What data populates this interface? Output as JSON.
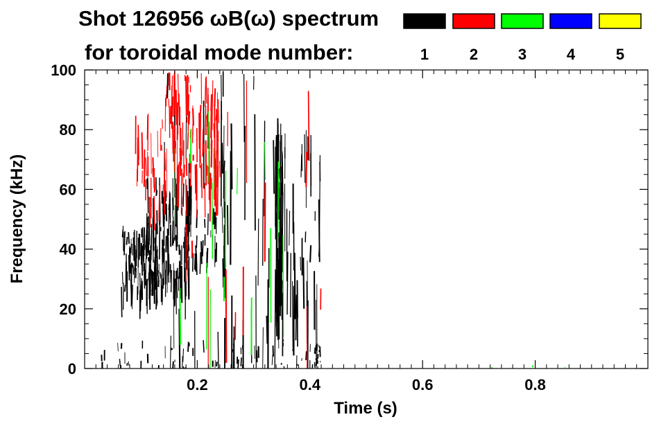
{
  "chart_data": {
    "type": "heatmap",
    "title": "Shot 126956 ωB(ω) spectrum",
    "subtitle": "for toroidal mode number:",
    "xlabel": "Time (s)",
    "ylabel": "Frequency (kHz)",
    "xlim": [
      0.0,
      1.0
    ],
    "ylim": [
      0,
      100
    ],
    "x_ticks": [
      0.2,
      0.4,
      0.6,
      0.8
    ],
    "x_tick_labels": [
      "0.2",
      "0.4",
      "0.6",
      "0.8"
    ],
    "y_ticks": [
      0,
      20,
      40,
      60,
      80,
      100
    ],
    "y_tick_labels": [
      "0",
      "20",
      "40",
      "60",
      "80",
      "100"
    ],
    "grid": false,
    "legend": {
      "placement": "top-right",
      "entries": [
        {
          "mode": "1",
          "color": "#000000"
        },
        {
          "mode": "2",
          "color": "#ff0000"
        },
        {
          "mode": "3",
          "color": "#00ff00"
        },
        {
          "mode": "4",
          "color": "#0000ff"
        },
        {
          "mode": "5",
          "color": "#ffff00"
        }
      ]
    },
    "regions": [
      {
        "mode": 1,
        "t0": 0.065,
        "t1": 0.14,
        "f0": 25,
        "f1": 48,
        "density": 110
      },
      {
        "mode": 1,
        "t0": 0.11,
        "t1": 0.19,
        "f0": 30,
        "f1": 65,
        "density": 130
      },
      {
        "mode": 1,
        "t0": 0.19,
        "t1": 0.235,
        "f0": 38,
        "f1": 55,
        "density": 25
      },
      {
        "mode": 1,
        "t0": 0.339,
        "t1": 0.352,
        "f0": 25,
        "f1": 85,
        "density": 60
      },
      {
        "mode": 1,
        "t0": 0.353,
        "t1": 0.42,
        "f0": 20,
        "f1": 82,
        "density": 40
      },
      {
        "mode": 1,
        "t0": 0.244,
        "t1": 0.25,
        "f0": 30,
        "f1": 78,
        "density": 12
      },
      {
        "mode": 1,
        "t0": 0.405,
        "t1": 0.418,
        "f0": 2,
        "f1": 8,
        "density": 14
      },
      {
        "mode": 1,
        "t0": 0.03,
        "t1": 0.42,
        "f0": 0,
        "f1": 10,
        "density": 60
      },
      {
        "mode": 1,
        "t0": 0.14,
        "t1": 0.345,
        "f0": 10,
        "f1": 100,
        "density": 45
      },
      {
        "mode": 2,
        "t0": 0.09,
        "t1": 0.14,
        "f0": 55,
        "f1": 86,
        "density": 30
      },
      {
        "mode": 2,
        "t0": 0.14,
        "t1": 0.24,
        "f0": 62,
        "f1": 100,
        "density": 120
      },
      {
        "mode": 2,
        "t0": 0.17,
        "t1": 0.42,
        "f0": 10,
        "f1": 100,
        "density": 14
      },
      {
        "mode": 3,
        "t0": 0.16,
        "t1": 0.36,
        "f0": 20,
        "f1": 100,
        "density": 16
      },
      {
        "mode": 3,
        "t0": 0.6,
        "t1": 0.9,
        "f0": 0,
        "f1": 2,
        "density": 3
      }
    ]
  }
}
